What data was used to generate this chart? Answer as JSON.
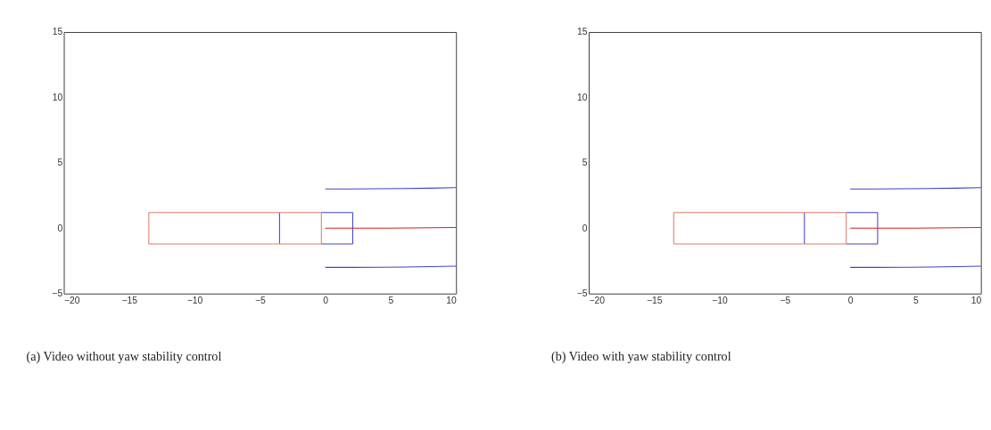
{
  "chart_data": [
    {
      "type": "line",
      "annotations": [
        "(a) Video without yaw stability control"
      ],
      "xlim": [
        -20,
        10
      ],
      "ylim": [
        -5,
        15
      ],
      "xticks": [
        -20,
        -15,
        -10,
        -5,
        0,
        5,
        10
      ],
      "yticks": [
        -5,
        0,
        5,
        10,
        15
      ],
      "grid": false,
      "series": [
        {
          "color": "#4040cc",
          "x": [
            -0.3,
            2.1
          ],
          "values": [
            1.2,
            1.2
          ]
        },
        {
          "color": "#4040cc",
          "x": [
            -0.3,
            2.1
          ],
          "values": [
            -1.2,
            -1.2
          ]
        },
        {
          "color": "#4040cc",
          "x": [
            -3.5,
            -3.5
          ],
          "values": [
            1.2,
            -1.2
          ]
        },
        {
          "color": "#4040cc",
          "x": [
            2.1,
            2.1
          ],
          "values": [
            1.2,
            -1.2
          ]
        },
        {
          "color": "#e07a70",
          "x": [
            -13.5,
            -0.3
          ],
          "values": [
            1.2,
            1.2
          ]
        },
        {
          "color": "#e07a70",
          "x": [
            -13.5,
            -0.3
          ],
          "values": [
            -1.2,
            -1.2
          ]
        },
        {
          "color": "#e07a70",
          "x": [
            -13.5,
            -13.5
          ],
          "values": [
            1.2,
            -1.2
          ]
        },
        {
          "color": "#e07a70",
          "x": [
            -0.3,
            -0.3
          ],
          "values": [
            1.2,
            -1.2
          ]
        },
        {
          "color": "#4040cc",
          "x": [
            0,
            2,
            4,
            6,
            8,
            10
          ],
          "values": [
            3,
            3,
            3.01,
            3.03,
            3.06,
            3.1
          ]
        },
        {
          "color": "#4040cc",
          "x": [
            0,
            2,
            4,
            6,
            8,
            10
          ],
          "values": [
            -3,
            -3,
            -2.99,
            -2.97,
            -2.94,
            -2.9
          ]
        },
        {
          "color": "#d02020",
          "x": [
            0,
            5,
            10
          ],
          "values": [
            0,
            0.01,
            0.05
          ]
        }
      ]
    },
    {
      "type": "line",
      "annotations": [
        "(b) Video with yaw stability control"
      ],
      "xlim": [
        -20,
        10
      ],
      "ylim": [
        -5,
        15
      ],
      "xticks": [
        -20,
        -15,
        -10,
        -5,
        0,
        5,
        10
      ],
      "yticks": [
        -5,
        0,
        5,
        10,
        15
      ],
      "grid": false,
      "series": [
        {
          "color": "#4040cc",
          "x": [
            -0.3,
            2.1
          ],
          "values": [
            1.2,
            1.2
          ]
        },
        {
          "color": "#4040cc",
          "x": [
            -0.3,
            2.1
          ],
          "values": [
            -1.2,
            -1.2
          ]
        },
        {
          "color": "#4040cc",
          "x": [
            -3.5,
            -3.5
          ],
          "values": [
            1.2,
            -1.2
          ]
        },
        {
          "color": "#4040cc",
          "x": [
            2.1,
            2.1
          ],
          "values": [
            1.2,
            -1.2
          ]
        },
        {
          "color": "#e07a70",
          "x": [
            -13.5,
            -0.3
          ],
          "values": [
            1.2,
            1.2
          ]
        },
        {
          "color": "#e07a70",
          "x": [
            -13.5,
            -0.3
          ],
          "values": [
            -1.2,
            -1.2
          ]
        },
        {
          "color": "#e07a70",
          "x": [
            -13.5,
            -13.5
          ],
          "values": [
            1.2,
            -1.2
          ]
        },
        {
          "color": "#e07a70",
          "x": [
            -0.3,
            -0.3
          ],
          "values": [
            1.2,
            -1.2
          ]
        },
        {
          "color": "#4040cc",
          "x": [
            0,
            2,
            4,
            6,
            8,
            10
          ],
          "values": [
            3,
            3,
            3.01,
            3.03,
            3.06,
            3.1
          ]
        },
        {
          "color": "#4040cc",
          "x": [
            0,
            2,
            4,
            6,
            8,
            10
          ],
          "values": [
            -3,
            -3,
            -2.99,
            -2.97,
            -2.94,
            -2.9
          ]
        },
        {
          "color": "#d02020",
          "x": [
            0,
            5,
            10
          ],
          "values": [
            0,
            0.01,
            0.05
          ]
        }
      ]
    }
  ]
}
